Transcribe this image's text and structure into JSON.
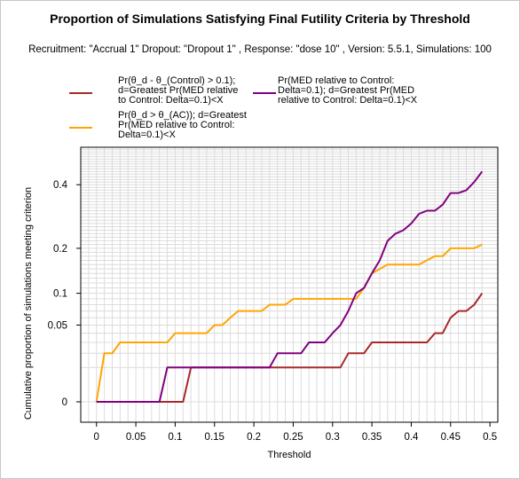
{
  "chart_data": {
    "type": "line",
    "title": "Proportion of Simulations Satisfying Final Futility Criteria by Threshold",
    "subtitle": "Recruitment: \"Accrual 1\" Dropout: \"Dropout 1\" , Response: \"dose 10\" , Version: 5.5.1, Simulations: 100",
    "xlabel": "Threshold",
    "ylabel": "Cumulative proportion of simulations meeting criterion",
    "xlim": [
      -0.02,
      0.51
    ],
    "y_scale": "sqrt",
    "ylim": [
      0,
      0.55
    ],
    "x_ticks": [
      "0",
      "0.05",
      "0.1",
      "0.15",
      "0.2",
      "0.25",
      "0.3",
      "0.35",
      "0.4",
      "0.45",
      "0.5"
    ],
    "y_ticks": [
      "0",
      "0.05",
      "0.1",
      "0.2",
      "0.4"
    ],
    "grid": true,
    "legend_position": "top-left",
    "x": [
      0,
      0.01,
      0.02,
      0.03,
      0.04,
      0.05,
      0.06,
      0.07,
      0.08,
      0.09,
      0.1,
      0.11,
      0.12,
      0.13,
      0.14,
      0.15,
      0.16,
      0.17,
      0.18,
      0.19,
      0.2,
      0.21,
      0.22,
      0.23,
      0.24,
      0.25,
      0.26,
      0.27,
      0.28,
      0.29,
      0.3,
      0.31,
      0.32,
      0.33,
      0.34,
      0.35,
      0.36,
      0.37,
      0.38,
      0.39,
      0.4,
      0.41,
      0.42,
      0.43,
      0.44,
      0.45,
      0.46,
      0.47,
      0.48,
      0.49
    ],
    "series": [
      {
        "name": "Pr(θ_d - θ_(Control) > 0.1); d=Greatest Pr(MED relative to Control: Delta=0.1)<X",
        "color": "#a52a2a",
        "values": [
          0,
          0,
          0,
          0,
          0,
          0,
          0,
          0,
          0,
          0,
          0,
          0,
          0.01,
          0.01,
          0.01,
          0.01,
          0.01,
          0.01,
          0.01,
          0.01,
          0.01,
          0.01,
          0.01,
          0.01,
          0.01,
          0.01,
          0.01,
          0.01,
          0.01,
          0.01,
          0.01,
          0.01,
          0.02,
          0.02,
          0.02,
          0.03,
          0.03,
          0.03,
          0.03,
          0.03,
          0.03,
          0.03,
          0.03,
          0.04,
          0.04,
          0.06,
          0.07,
          0.07,
          0.08,
          0.1
        ]
      },
      {
        "name": "Pr(θ_d > θ_(AC)); d=Greatest Pr(MED relative to Control: Delta=0.1)<X",
        "color": "#ffa500",
        "values": [
          0,
          0.02,
          0.02,
          0.03,
          0.03,
          0.03,
          0.03,
          0.03,
          0.03,
          0.03,
          0.04,
          0.04,
          0.04,
          0.04,
          0.04,
          0.05,
          0.05,
          0.06,
          0.07,
          0.07,
          0.07,
          0.07,
          0.08,
          0.08,
          0.08,
          0.09,
          0.09,
          0.09,
          0.09,
          0.09,
          0.09,
          0.09,
          0.09,
          0.09,
          0.11,
          0.14,
          0.15,
          0.16,
          0.16,
          0.16,
          0.16,
          0.16,
          0.17,
          0.18,
          0.18,
          0.2,
          0.2,
          0.2,
          0.2,
          0.21
        ]
      },
      {
        "name": "Pr(MED relative to Control: Delta=0.1); d=Greatest Pr(MED relative to Control: Delta=0.1)<X",
        "color": "#800080",
        "values": [
          0,
          0,
          0,
          0,
          0,
          0,
          0,
          0,
          0,
          0.01,
          0.01,
          0.01,
          0.01,
          0.01,
          0.01,
          0.01,
          0.01,
          0.01,
          0.01,
          0.01,
          0.01,
          0.01,
          0.01,
          0.02,
          0.02,
          0.02,
          0.02,
          0.03,
          0.03,
          0.03,
          0.04,
          0.05,
          0.07,
          0.1,
          0.11,
          0.14,
          0.17,
          0.22,
          0.24,
          0.25,
          0.27,
          0.3,
          0.31,
          0.31,
          0.33,
          0.37,
          0.37,
          0.38,
          0.41,
          0.45
        ]
      }
    ],
    "legend": [
      [
        "Pr(θ_d - θ_(Control) > 0.1);",
        "d=Greatest Pr(MED relative",
        "to Control: Delta=0.1)<X"
      ],
      [
        "Pr(θ_d > θ_(AC)); d=Greatest",
        "Pr(MED relative to Control:",
        "Delta=0.1)<X"
      ],
      [
        "Pr(MED relative to Control:",
        "Delta=0.1); d=Greatest Pr(MED",
        "relative to Control: Delta=0.1)<X"
      ]
    ]
  }
}
